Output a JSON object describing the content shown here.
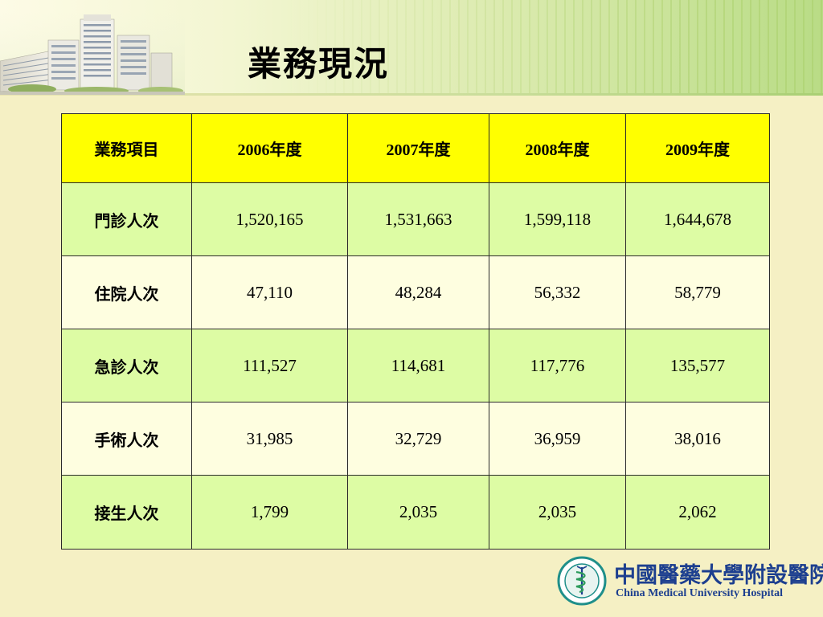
{
  "slide": {
    "title": "業務現況"
  },
  "table": {
    "headers": [
      "業務項目",
      "2006年度",
      "2007年度",
      "2008年度",
      "2009年度"
    ],
    "rows": [
      {
        "label": "門診人次",
        "values": [
          "1,520,165",
          "1,531,663",
          "1,599,118",
          "1,644,678"
        ]
      },
      {
        "label": "住院人次",
        "values": [
          "47,110",
          "48,284",
          "56,332",
          "58,779"
        ]
      },
      {
        "label": "急診人次",
        "values": [
          "111,527",
          "114,681",
          "117,776",
          "135,577"
        ]
      },
      {
        "label": "手術人次",
        "values": [
          "31,985",
          "32,729",
          "36,959",
          "38,016"
        ]
      },
      {
        "label": "接生人次",
        "values": [
          "1,799",
          "2,035",
          "2,035",
          "2,062"
        ]
      }
    ]
  },
  "logo": {
    "name_zh": "中國醫藥大學附設醫院",
    "name_en": "China Medical University Hospital"
  },
  "colors": {
    "header_row": "#ffff00",
    "row_green": "#ddfca4",
    "row_cream": "#fefee0",
    "background": "#f5f0c4",
    "logo_blue": "#1d3f8f"
  }
}
